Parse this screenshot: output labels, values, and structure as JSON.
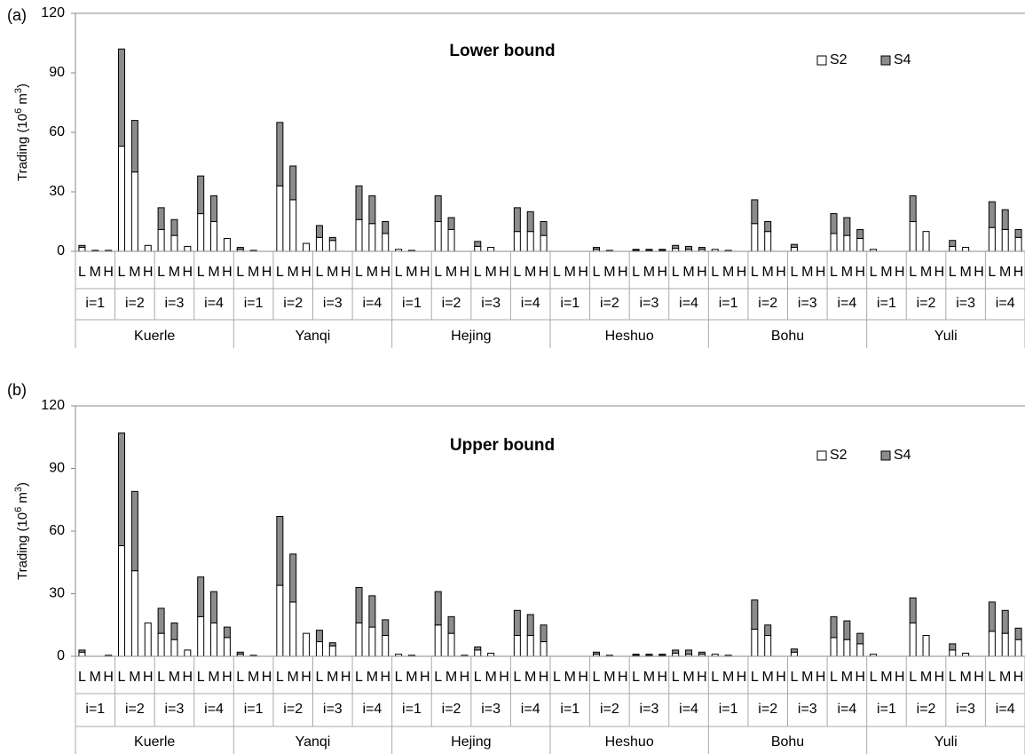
{
  "chart_data": [
    {
      "type": "bar",
      "panel_label": "(a)",
      "title": "Lower bound",
      "ylabel": "Trading (10",
      "ylabel_exp": "6",
      "ylabel_unit": " m",
      "ylabel_unit_exp": "3",
      "ylabel_close": ")",
      "ylim": [
        0,
        120
      ],
      "yticks": [
        "0",
        "30",
        "60",
        "90",
        "120"
      ],
      "stacked": true,
      "regions": [
        "Kuerle",
        "Yanqi",
        "Hejing",
        "Heshuo",
        "Bohu",
        "Yuli"
      ],
      "periods": [
        "i=1",
        "i=2",
        "i=3",
        "i=4"
      ],
      "levels": [
        "L",
        "M",
        "H"
      ],
      "series": [
        {
          "name": "S2",
          "color": "#ffffff",
          "values": [
            [
              [
                2,
                0,
                0.5
              ],
              [
                53,
                40,
                3
              ],
              [
                11,
                8,
                2.5
              ],
              [
                19,
                15,
                6.5
              ]
            ],
            [
              [
                1,
                0.5,
                0
              ],
              [
                33,
                26,
                4
              ],
              [
                7,
                5.5,
                0
              ],
              [
                16,
                14,
                9
              ]
            ],
            [
              [
                1,
                0.5,
                0
              ],
              [
                15,
                11,
                0
              ],
              [
                2.5,
                2,
                0
              ],
              [
                10,
                10,
                8
              ]
            ],
            [
              [
                0,
                0,
                0
              ],
              [
                1,
                0.5,
                0
              ],
              [
                0.5,
                0.5,
                0.5
              ],
              [
                1.5,
                1,
                1
              ]
            ],
            [
              [
                1,
                0.5,
                0
              ],
              [
                14,
                10,
                0
              ],
              [
                2,
                0,
                0
              ],
              [
                9,
                8,
                6.5
              ]
            ],
            [
              [
                1,
                0,
                0
              ],
              [
                15,
                10,
                0
              ],
              [
                2.5,
                2,
                0
              ],
              [
                12,
                11,
                7
              ]
            ]
          ]
        },
        {
          "name": "S4",
          "color": "#8c8c8c",
          "values": [
            [
              [
                1,
                0.5,
                0
              ],
              [
                49,
                26,
                0
              ],
              [
                11,
                8,
                0
              ],
              [
                19,
                13,
                0
              ]
            ],
            [
              [
                1,
                0,
                0
              ],
              [
                32,
                17,
                0
              ],
              [
                6,
                1.5,
                0
              ],
              [
                17,
                14,
                6
              ]
            ],
            [
              [
                0,
                0,
                0
              ],
              [
                13,
                6,
                0
              ],
              [
                2.5,
                0,
                0
              ],
              [
                12,
                10,
                7
              ]
            ],
            [
              [
                0,
                0,
                0
              ],
              [
                1,
                0,
                0
              ],
              [
                0.5,
                0.5,
                0.5
              ],
              [
                1.5,
                1.5,
                1
              ]
            ],
            [
              [
                0,
                0,
                0
              ],
              [
                12,
                5,
                0
              ],
              [
                1.5,
                0,
                0
              ],
              [
                10,
                9,
                4.5
              ]
            ],
            [
              [
                0,
                0,
                0
              ],
              [
                13,
                0,
                0
              ],
              [
                3,
                0,
                0
              ],
              [
                13,
                10,
                4
              ]
            ]
          ]
        }
      ]
    },
    {
      "type": "bar",
      "panel_label": "(b)",
      "title": "Upper bound",
      "ylabel": "Trading (10",
      "ylabel_exp": "6",
      "ylabel_unit": " m",
      "ylabel_unit_exp": "3",
      "ylabel_close": ")",
      "ylim": [
        0,
        120
      ],
      "yticks": [
        "0",
        "30",
        "60",
        "90",
        "120"
      ],
      "stacked": true,
      "regions": [
        "Kuerle",
        "Yanqi",
        "Hejing",
        "Heshuo",
        "Bohu",
        "Yuli"
      ],
      "periods": [
        "i=1",
        "i=2",
        "i=3",
        "i=4"
      ],
      "levels": [
        "L",
        "M",
        "H"
      ],
      "series": [
        {
          "name": "S2",
          "color": "#ffffff",
          "values": [
            [
              [
                2,
                0,
                0.5
              ],
              [
                53,
                41,
                16
              ],
              [
                11,
                8,
                3
              ],
              [
                19,
                16,
                9
              ]
            ],
            [
              [
                1,
                0.5,
                0
              ],
              [
                34,
                26,
                11
              ],
              [
                7,
                5,
                0
              ],
              [
                16,
                14,
                10
              ]
            ],
            [
              [
                1,
                0.5,
                0
              ],
              [
                15,
                11,
                0.5
              ],
              [
                3,
                1.5,
                0
              ],
              [
                10,
                10,
                7
              ]
            ],
            [
              [
                0,
                0,
                0
              ],
              [
                1,
                0.5,
                0
              ],
              [
                0.5,
                0.5,
                0.5
              ],
              [
                1.5,
                1,
                1
              ]
            ],
            [
              [
                1,
                0.5,
                0
              ],
              [
                13,
                10,
                0
              ],
              [
                2,
                0,
                0
              ],
              [
                9,
                8,
                6
              ]
            ],
            [
              [
                1,
                0,
                0
              ],
              [
                16,
                10,
                0
              ],
              [
                3,
                1.5,
                0
              ],
              [
                12,
                11,
                8
              ]
            ]
          ]
        },
        {
          "name": "S4",
          "color": "#8c8c8c",
          "values": [
            [
              [
                1,
                0,
                0
              ],
              [
                54,
                38,
                0
              ],
              [
                12,
                8,
                0
              ],
              [
                19,
                15,
                5
              ]
            ],
            [
              [
                1,
                0,
                0
              ],
              [
                33,
                23,
                0
              ],
              [
                5.5,
                1.5,
                0
              ],
              [
                17,
                15,
                7.5
              ]
            ],
            [
              [
                0,
                0,
                0
              ],
              [
                16,
                8,
                0
              ],
              [
                1.5,
                0,
                0
              ],
              [
                12,
                10,
                8
              ]
            ],
            [
              [
                0,
                0,
                0
              ],
              [
                1,
                0,
                0
              ],
              [
                0.5,
                0.5,
                0.5
              ],
              [
                1.5,
                2,
                1
              ]
            ],
            [
              [
                0,
                0,
                0
              ],
              [
                14,
                5,
                0
              ],
              [
                1.5,
                0,
                0
              ],
              [
                10,
                9,
                5
              ]
            ],
            [
              [
                0,
                0,
                0
              ],
              [
                12,
                0,
                0
              ],
              [
                3,
                0,
                0
              ],
              [
                14,
                11,
                5.5
              ]
            ]
          ]
        }
      ]
    }
  ]
}
